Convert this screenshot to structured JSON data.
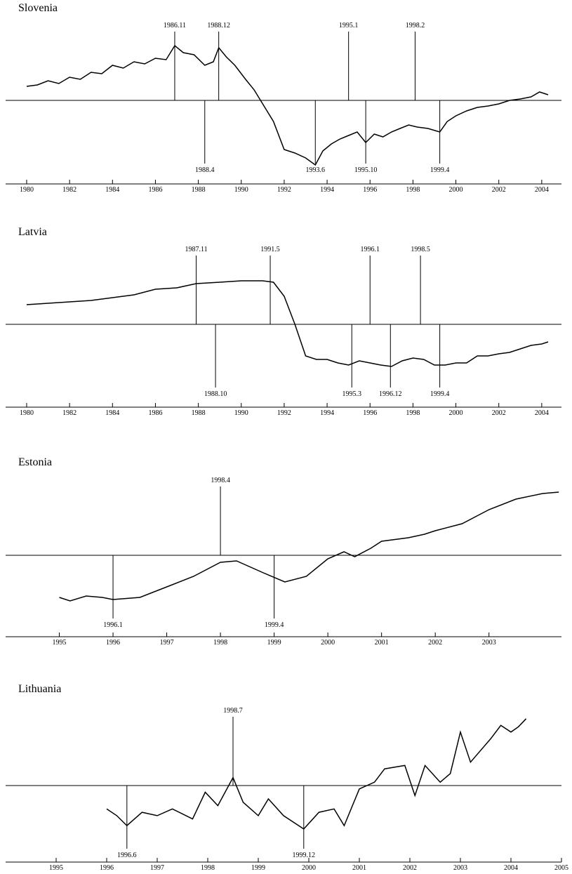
{
  "chart_data": [
    {
      "type": "line",
      "title": "Slovenia",
      "color": "#000000",
      "baseline": 0,
      "x": [
        1980,
        1980.5,
        1981,
        1981.5,
        1982,
        1982.5,
        1983,
        1983.5,
        1984,
        1984.5,
        1985,
        1985.5,
        1986,
        1986.5,
        1986.9,
        1987.3,
        1987.8,
        1988.3,
        1988.7,
        1988.95,
        1989.3,
        1989.7,
        1990.2,
        1990.6,
        1991,
        1991.5,
        1992,
        1992.5,
        1993,
        1993.45,
        1993.8,
        1994.2,
        1994.6,
        1995,
        1995.4,
        1995.8,
        1996.2,
        1996.6,
        1997,
        1997.4,
        1997.8,
        1998.2,
        1998.7,
        1999.25,
        1999.6,
        2000,
        2000.5,
        2001,
        2001.5,
        2002,
        2002.5,
        2003,
        2003.5,
        2003.9,
        2004.3
      ],
      "values": [
        20,
        22,
        28,
        24,
        33,
        30,
        40,
        38,
        50,
        46,
        55,
        52,
        60,
        58,
        78,
        68,
        65,
        50,
        55,
        75,
        62,
        50,
        30,
        15,
        -5,
        -30,
        -70,
        -75,
        -82,
        -92,
        -72,
        -62,
        -55,
        -50,
        -45,
        -60,
        -48,
        -52,
        -45,
        -40,
        -35,
        -38,
        -40,
        -45,
        -30,
        -22,
        -15,
        -10,
        -8,
        -5,
        0,
        2,
        5,
        12,
        8
      ],
      "xlim": [
        1979.02,
        2004.92
      ],
      "xticks": [
        1980,
        1982,
        1984,
        1986,
        1988,
        1990,
        1992,
        1994,
        1996,
        1998,
        2000,
        2002,
        2004
      ],
      "ylim": [
        -100,
        100
      ],
      "annotations": [
        {
          "label": "1986.11",
          "x": 1986.9,
          "direction": "up"
        },
        {
          "label": "1988.12",
          "x": 1988.95,
          "direction": "up"
        },
        {
          "label": "1995.1",
          "x": 1995.0,
          "direction": "up"
        },
        {
          "label": "1998.2",
          "x": 1998.1,
          "direction": "up"
        },
        {
          "label": "1988.4",
          "x": 1988.3,
          "direction": "down"
        },
        {
          "label": "1993.6",
          "x": 1993.45,
          "direction": "down"
        },
        {
          "label": "1995.10",
          "x": 1995.8,
          "direction": "down"
        },
        {
          "label": "1999.4",
          "x": 1999.25,
          "direction": "down"
        }
      ]
    },
    {
      "type": "line",
      "title": "Latvia",
      "color": "#000000",
      "baseline": 0,
      "x": [
        1980,
        1981,
        1982,
        1983,
        1984,
        1985,
        1986,
        1987,
        1987.9,
        1989,
        1990,
        1991,
        1991.5,
        1992,
        1992.5,
        1993,
        1993.5,
        1994,
        1994.5,
        1995,
        1995.5,
        1996,
        1996.5,
        1997,
        1997.5,
        1998,
        1998.5,
        1999,
        1999.5,
        2000,
        2000.5,
        2001,
        2001.5,
        2002,
        2002.5,
        2003,
        2003.5,
        2004,
        2004.3
      ],
      "values": [
        28,
        30,
        32,
        34,
        38,
        42,
        50,
        52,
        58,
        60,
        62,
        62,
        60,
        40,
        0,
        -45,
        -50,
        -50,
        -55,
        -58,
        -52,
        -55,
        -58,
        -60,
        -52,
        -48,
        -50,
        -58,
        -58,
        -55,
        -55,
        -45,
        -45,
        -42,
        -40,
        -35,
        -30,
        -28,
        -25
      ],
      "xlim": [
        1979.02,
        2004.92
      ],
      "xticks": [
        1980,
        1982,
        1984,
        1986,
        1988,
        1990,
        1992,
        1994,
        1996,
        1998,
        2000,
        2002,
        2004
      ],
      "ylim": [
        -100,
        100
      ],
      "annotations": [
        {
          "label": "1987.11",
          "x": 1987.9,
          "direction": "up"
        },
        {
          "label": "1991.5",
          "x": 1991.35,
          "direction": "up"
        },
        {
          "label": "1996.1",
          "x": 1996.0,
          "direction": "up"
        },
        {
          "label": "1998.5",
          "x": 1998.35,
          "direction": "up"
        },
        {
          "label": "1988.10",
          "x": 1988.8,
          "direction": "down"
        },
        {
          "label": "1995.3",
          "x": 1995.15,
          "direction": "down"
        },
        {
          "label": "1996.12",
          "x": 1996.95,
          "direction": "down"
        },
        {
          "label": "1999.4",
          "x": 1999.25,
          "direction": "down"
        }
      ]
    },
    {
      "type": "line",
      "title": "Estonia",
      "color": "#000000",
      "baseline": 0,
      "x": [
        1995,
        1995.2,
        1995.5,
        1995.8,
        1996,
        1996.5,
        1997,
        1997.5,
        1998,
        1998.3,
        1998.8,
        1999.2,
        1999.6,
        2000,
        2000.3,
        2000.5,
        2000.8,
        2001,
        2001.5,
        2001.8,
        2002,
        2002.5,
        2003,
        2003.5,
        2004,
        2004.3
      ],
      "values": [
        -60,
        -65,
        -58,
        -60,
        -63,
        -60,
        -45,
        -30,
        -10,
        -8,
        -25,
        -38,
        -30,
        -5,
        5,
        -2,
        10,
        20,
        25,
        30,
        35,
        45,
        65,
        80,
        88,
        90
      ],
      "xlim": [
        1994,
        2004.35
      ],
      "xticks": [
        1995,
        1996,
        1997,
        1998,
        1999,
        2000,
        2001,
        2002,
        2003
      ],
      "ylim": [
        -100,
        100
      ],
      "annotations": [
        {
          "label": "1998.4",
          "x": 1998.0,
          "direction": "up"
        },
        {
          "label": "1996.1",
          "x": 1996.0,
          "direction": "down"
        },
        {
          "label": "1999.4",
          "x": 1999.0,
          "direction": "down"
        }
      ]
    },
    {
      "type": "line",
      "title": "Lithuania",
      "color": "#000000",
      "baseline": 0,
      "x": [
        1996,
        1996.2,
        1996.4,
        1996.7,
        1997,
        1997.3,
        1997.7,
        1997.95,
        1998.2,
        1998.5,
        1998.7,
        1999,
        1999.2,
        1999.5,
        1999.9,
        2000.2,
        2000.5,
        2000.7,
        2001,
        2001.3,
        2001.5,
        2001.9,
        2002.1,
        2002.3,
        2002.6,
        2002.8,
        2003,
        2003.2,
        2003.6,
        2003.8,
        2004,
        2004.15,
        2004.3
      ],
      "values": [
        -35,
        -45,
        -60,
        -40,
        -45,
        -35,
        -50,
        -10,
        -30,
        12,
        -25,
        -45,
        -20,
        -45,
        -65,
        -40,
        -35,
        -60,
        -5,
        5,
        25,
        30,
        -15,
        30,
        5,
        18,
        80,
        35,
        70,
        90,
        80,
        88,
        100
      ],
      "xlim": [
        1994,
        2005
      ],
      "xticks": [
        1995,
        1996,
        1997,
        1998,
        1999,
        2000,
        2001,
        2002,
        2003,
        2004,
        2005
      ],
      "ylim": [
        -100,
        110
      ],
      "annotations": [
        {
          "label": "1998.7",
          "x": 1998.5,
          "direction": "up"
        },
        {
          "label": "1996.6",
          "x": 1996.4,
          "direction": "down"
        },
        {
          "label": "1999.12",
          "x": 1999.9,
          "direction": "down"
        }
      ]
    }
  ]
}
